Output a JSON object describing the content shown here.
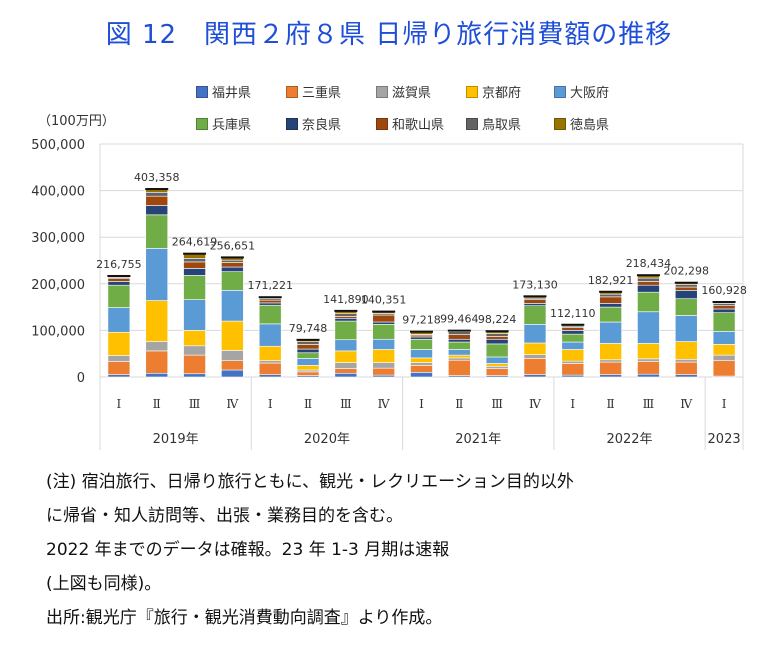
{
  "title": "図 12　関西２府８県 日帰り旅行消費額の推移",
  "unit_label": "（100万円）",
  "notes": [
    "(注) 宿泊旅行、日帰り旅行ともに、観光・レクリエーション目的以外",
    "に帰省・知人訪問等、出張・業務目的を含む。",
    "2022 年までのデータは確報。23 年 1-3 月期は速報",
    "(上図も同様)。",
    "出所:観光庁『旅行・観光消費動向調査』より作成。"
  ],
  "chart_data": {
    "type": "bar",
    "stacked": true,
    "ylim": [
      0,
      500000
    ],
    "yticks": [
      0,
      100000,
      200000,
      300000,
      400000,
      500000
    ],
    "ytick_labels": [
      "0",
      "100,000",
      "200,000",
      "300,000",
      "400,000",
      "500,000"
    ],
    "grid": true,
    "legend_position": "top",
    "categories": [
      "Ⅰ",
      "Ⅱ",
      "Ⅲ",
      "Ⅳ",
      "Ⅰ",
      "Ⅱ",
      "Ⅲ",
      "Ⅳ",
      "Ⅰ",
      "Ⅱ",
      "Ⅲ",
      "Ⅳ",
      "Ⅰ",
      "Ⅱ",
      "Ⅲ",
      "Ⅳ",
      "Ⅰ"
    ],
    "groups": [
      {
        "label": "2019年",
        "start": 0,
        "count": 4
      },
      {
        "label": "2020年",
        "start": 4,
        "count": 4
      },
      {
        "label": "2021年",
        "start": 8,
        "count": 4
      },
      {
        "label": "2022年",
        "start": 12,
        "count": 4
      },
      {
        "label": "2023",
        "start": 16,
        "count": 1
      }
    ],
    "totals": [
      216755,
      403358,
      264619,
      256651,
      171221,
      79748,
      141890,
      140351,
      97218,
      99464,
      98224,
      173130,
      112110,
      182921,
      218434,
      202298,
      160928
    ],
    "total_labels": [
      "216,755",
      "403,358",
      "264,619",
      "256,651",
      "171,221",
      "79,748",
      "141,890",
      "140,351",
      "97,218",
      "99,464",
      "98,224",
      "173,130",
      "112,110",
      "182,921",
      "218,434",
      "202,298",
      "160,928"
    ],
    "series": [
      {
        "name": "福井県",
        "color": "#4472c4",
        "values": [
          5000,
          8000,
          7000,
          15000,
          5000,
          3000,
          8000,
          4000,
          10000,
          3000,
          3000,
          5000,
          4000,
          5000,
          6000,
          5000,
          2000
        ]
      },
      {
        "name": "三重県",
        "color": "#ed7d31",
        "values": [
          28000,
          48000,
          40000,
          20000,
          25000,
          8000,
          10000,
          15000,
          15000,
          33000,
          15000,
          35000,
          25000,
          27000,
          27000,
          27000,
          33000
        ]
      },
      {
        "name": "滋賀県",
        "color": "#a5a5a5",
        "values": [
          13000,
          20000,
          20000,
          22000,
          5000,
          4000,
          13000,
          12000,
          6000,
          5000,
          5000,
          8000,
          5000,
          5000,
          6000,
          6000,
          12000
        ]
      },
      {
        "name": "京都府",
        "color": "#ffc000",
        "values": [
          50000,
          88000,
          33000,
          63000,
          31000,
          10000,
          25000,
          28000,
          10000,
          6000,
          6000,
          25000,
          25000,
          35000,
          33000,
          38000,
          23000
        ]
      },
      {
        "name": "大阪府",
        "color": "#5b9bd5",
        "values": [
          53000,
          112000,
          66000,
          66000,
          48000,
          15000,
          24000,
          22000,
          18000,
          12000,
          14000,
          40000,
          16000,
          46000,
          68000,
          56000,
          28000
        ]
      },
      {
        "name": "兵庫県",
        "color": "#70ad47",
        "values": [
          48000,
          72000,
          52000,
          40000,
          40000,
          12000,
          40000,
          32000,
          22000,
          16000,
          28000,
          40000,
          17000,
          32000,
          42000,
          36000,
          40000
        ]
      },
      {
        "name": "奈良県",
        "color": "#264478",
        "values": [
          8000,
          20000,
          15000,
          10000,
          5000,
          8000,
          6000,
          5000,
          5000,
          6000,
          10000,
          5000,
          8000,
          8000,
          15000,
          18000,
          8000
        ]
      },
      {
        "name": "和歌山県",
        "color": "#9e480e",
        "values": [
          6000,
          20000,
          14000,
          10000,
          6000,
          10000,
          4000,
          15000,
          4000,
          10000,
          6000,
          8000,
          6000,
          14000,
          8000,
          7000,
          7000
        ]
      },
      {
        "name": "鳥取県",
        "color": "#636363",
        "values": [
          2755,
          8358,
          7619,
          4651,
          3221,
          5748,
          5890,
          3351,
          1218,
          6464,
          6224,
          3130,
          3110,
          5921,
          7434,
          5298,
          4928
        ]
      },
      {
        "name": "徳島県",
        "color": "#997300",
        "values": [
          3000,
          7000,
          10000,
          6000,
          3000,
          4000,
          6000,
          4000,
          6000,
          2000,
          5000,
          4000,
          3000,
          5000,
          6000,
          4000,
          3000
        ]
      }
    ]
  }
}
